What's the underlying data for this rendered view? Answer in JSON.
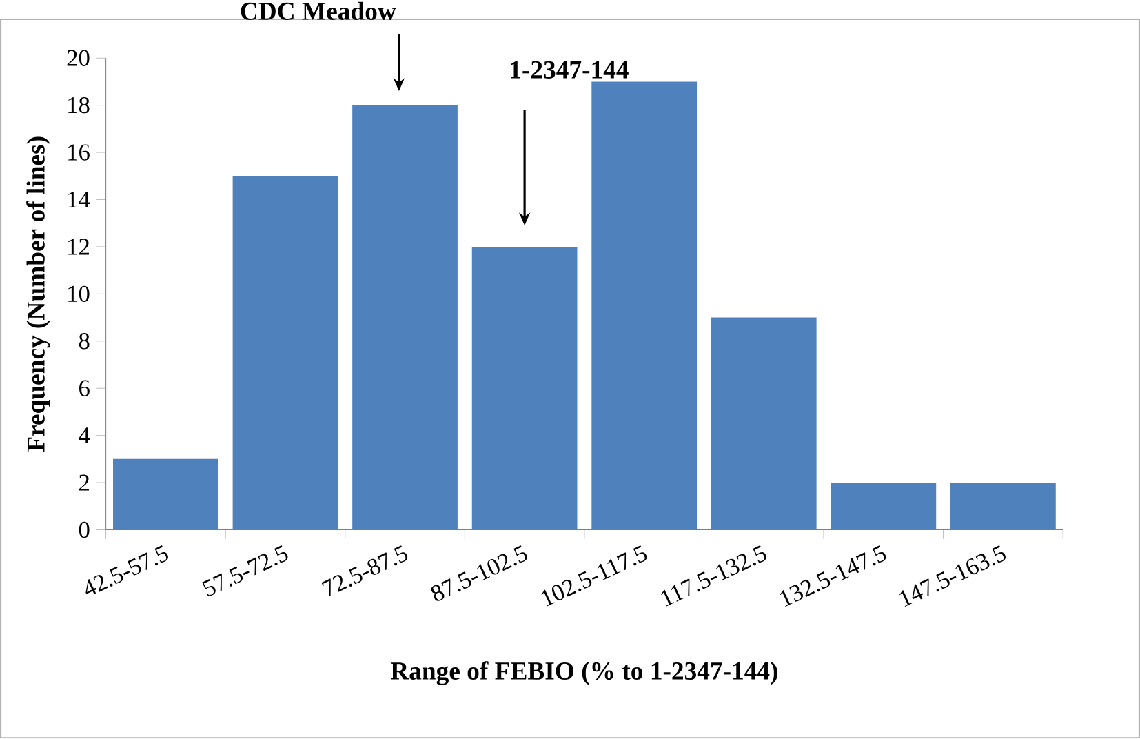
{
  "chart_data": {
    "type": "bar",
    "xlabel": "Range of FEBIO (% to 1-2347-144)",
    "ylabel": "Frequency (Number of lines)",
    "categories": [
      "42.5-57.5",
      "57.5-72.5",
      "72.5-87.5",
      "87.5-102.5",
      "102.5-117.5",
      "117.5-132.5",
      "132.5-147.5",
      "147.5-163.5"
    ],
    "values": [
      3,
      15,
      18,
      12,
      19,
      9,
      2,
      2
    ],
    "color": "#4f81bd",
    "ylim": [
      0,
      20
    ],
    "yticks": [
      0,
      2,
      4,
      6,
      8,
      10,
      12,
      14,
      16,
      18,
      20
    ],
    "grid": false,
    "annotations": [
      "CDC Meadow",
      "1-2347-144"
    ]
  }
}
